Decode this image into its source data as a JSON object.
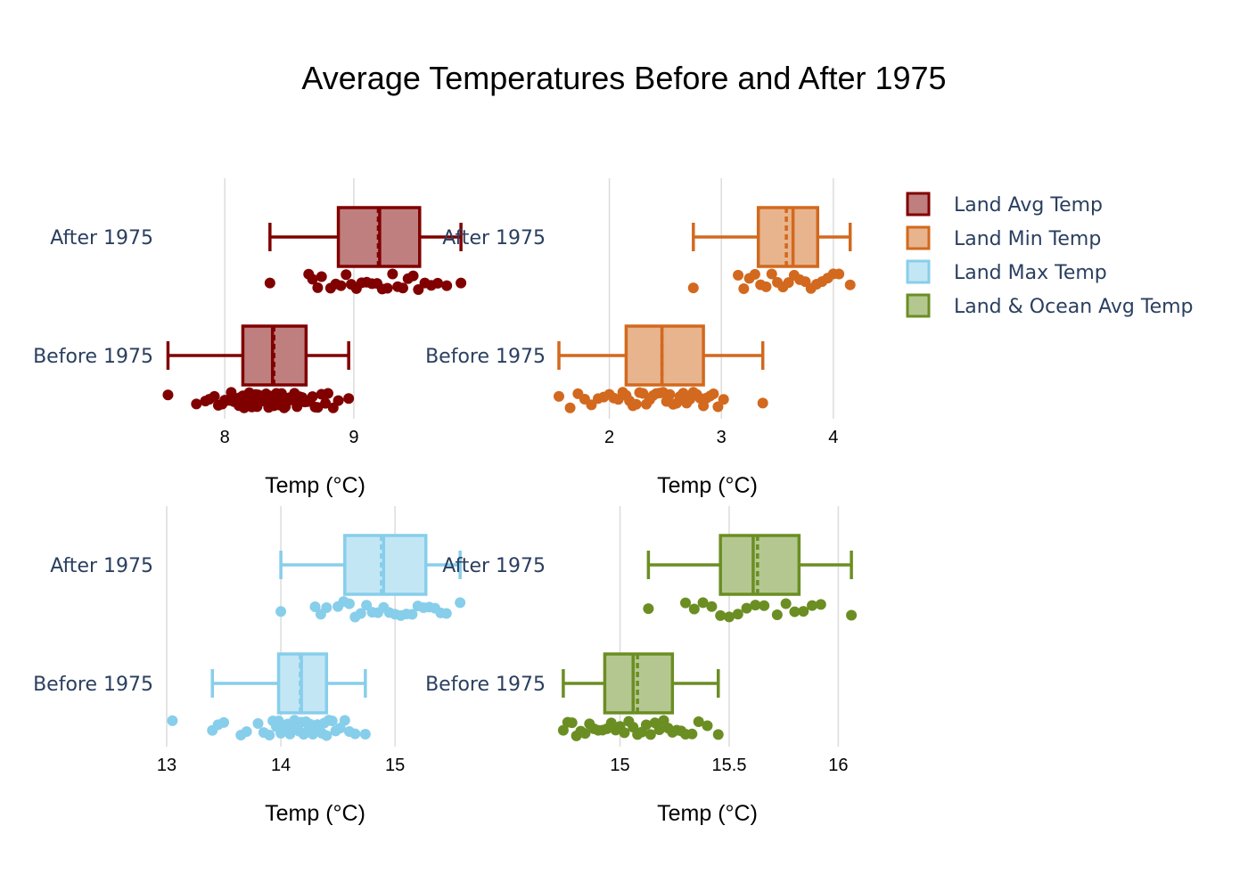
{
  "chart_data": {
    "type": "box",
    "title": "Average Temperatures Before and After 1975",
    "categories": [
      "Before 1975",
      "After 1975"
    ],
    "legend": {
      "placement": "top-right",
      "items": [
        "Land Avg Temp",
        "Land Min Temp",
        "Land Max Temp",
        "Land & Ocean Avg Temp"
      ]
    },
    "grid": true,
    "panels": [
      {
        "series": "Land Avg Temp",
        "color": "#800000",
        "fill": "#bf7f7f",
        "xlabel": "Temp (°C)",
        "xlim": [
          7.55,
          9.85
        ],
        "xticks": [
          8,
          9
        ],
        "boxes": [
          {
            "category": "Before 1975",
            "min": 7.56,
            "q1": 8.14,
            "median": 8.37,
            "mean": 8.38,
            "q3": 8.63,
            "max": 8.96,
            "points": [
              7.56,
              7.78,
              7.85,
              7.88,
              7.92,
              7.95,
              7.98,
              8.0,
              8.02,
              8.04,
              8.05,
              8.07,
              8.08,
              8.1,
              8.11,
              8.12,
              8.13,
              8.14,
              8.15,
              8.16,
              8.17,
              8.18,
              8.19,
              8.2,
              8.21,
              8.22,
              8.23,
              8.24,
              8.25,
              8.26,
              8.27,
              8.28,
              8.29,
              8.3,
              8.31,
              8.32,
              8.33,
              8.34,
              8.35,
              8.36,
              8.37,
              8.38,
              8.39,
              8.4,
              8.41,
              8.42,
              8.43,
              8.44,
              8.45,
              8.46,
              8.47,
              8.48,
              8.5,
              8.52,
              8.54,
              8.56,
              8.58,
              8.6,
              8.62,
              8.64,
              8.66,
              8.68,
              8.7,
              8.72,
              8.75,
              8.78,
              8.8,
              8.84,
              8.88,
              8.96
            ]
          },
          {
            "category": "After 1975",
            "min": 8.35,
            "q1": 8.88,
            "median": 9.2,
            "mean": 9.19,
            "q3": 9.51,
            "max": 9.83,
            "points": [
              8.35,
              8.65,
              8.68,
              8.72,
              8.75,
              8.82,
              8.86,
              8.9,
              8.94,
              8.98,
              9.02,
              9.06,
              9.1,
              9.14,
              9.18,
              9.22,
              9.26,
              9.3,
              9.34,
              9.38,
              9.42,
              9.46,
              9.5,
              9.55,
              9.6,
              9.65,
              9.72,
              9.83
            ]
          }
        ]
      },
      {
        "series": "Land Min Temp",
        "color": "#d2691e",
        "fill": "#e8b48e",
        "xlabel": "Temp (°C)",
        "xlim": [
          1.55,
          4.2
        ],
        "xticks": [
          2,
          3,
          4
        ],
        "boxes": [
          {
            "category": "Before 1975",
            "min": 1.55,
            "q1": 2.15,
            "median": 2.47,
            "mean": 2.47,
            "q3": 2.84,
            "max": 3.37,
            "points": [
              1.55,
              1.65,
              1.72,
              1.78,
              1.84,
              1.9,
              1.95,
              2.0,
              2.04,
              2.08,
              2.12,
              2.15,
              2.18,
              2.21,
              2.24,
              2.27,
              2.3,
              2.33,
              2.36,
              2.39,
              2.42,
              2.45,
              2.48,
              2.51,
              2.54,
              2.57,
              2.6,
              2.63,
              2.66,
              2.69,
              2.72,
              2.75,
              2.78,
              2.81,
              2.84,
              2.87,
              2.9,
              2.93,
              2.97,
              3.02,
              3.37
            ]
          },
          {
            "category": "After 1975",
            "min": 2.75,
            "q1": 3.33,
            "median": 3.64,
            "mean": 3.58,
            "q3": 3.86,
            "max": 4.15,
            "points": [
              2.75,
              3.15,
              3.2,
              3.25,
              3.3,
              3.35,
              3.4,
              3.45,
              3.5,
              3.55,
              3.6,
              3.65,
              3.7,
              3.75,
              3.8,
              3.85,
              3.9,
              3.95,
              4.0,
              4.05,
              4.15
            ]
          }
        ]
      },
      {
        "series": "Land Max Temp",
        "color": "#87ceeb",
        "fill": "#c3e6f5",
        "xlabel": "Temp (°C)",
        "xlim": [
          13.0,
          15.6
        ],
        "xticks": [
          13,
          14,
          15
        ],
        "boxes": [
          {
            "category": "Before 1975",
            "min": 13.4,
            "q1": 13.98,
            "median": 14.18,
            "mean": 14.17,
            "q3": 14.4,
            "max": 14.74,
            "points": [
              13.05,
              13.4,
              13.45,
              13.5,
              13.65,
              13.7,
              13.8,
              13.85,
              13.9,
              13.93,
              13.96,
              13.98,
              14.0,
              14.02,
              14.04,
              14.06,
              14.08,
              14.1,
              14.12,
              14.14,
              14.16,
              14.18,
              14.2,
              14.22,
              14.24,
              14.26,
              14.28,
              14.3,
              14.32,
              14.34,
              14.36,
              14.38,
              14.4,
              14.42,
              14.45,
              14.48,
              14.52,
              14.56,
              14.6,
              14.65,
              14.74
            ]
          },
          {
            "category": "After 1975",
            "min": 14.0,
            "q1": 14.56,
            "median": 14.9,
            "mean": 14.88,
            "q3": 15.27,
            "max": 15.57,
            "points": [
              14.0,
              14.3,
              14.35,
              14.4,
              14.5,
              14.55,
              14.6,
              14.65,
              14.7,
              14.75,
              14.8,
              14.85,
              14.9,
              14.95,
              15.0,
              15.05,
              15.1,
              15.15,
              15.2,
              15.25,
              15.3,
              15.35,
              15.4,
              15.45,
              15.57
            ]
          }
        ]
      },
      {
        "series": "Land & Ocean Avg Temp",
        "color": "#6b8e23",
        "fill": "#b5c791",
        "xlabel": "Temp (°C)",
        "xlim": [
          14.72,
          16.08
        ],
        "xticks": [
          15,
          15.5,
          16
        ],
        "xticklabels": [
          "15",
          "15.5",
          "16"
        ],
        "boxes": [
          {
            "category": "Before 1975",
            "min": 14.74,
            "q1": 14.93,
            "median": 15.06,
            "mean": 15.08,
            "q3": 15.24,
            "max": 15.45,
            "points": [
              14.74,
              14.76,
              14.78,
              14.8,
              14.82,
              14.84,
              14.86,
              14.88,
              14.9,
              14.92,
              14.94,
              14.96,
              14.98,
              15.0,
              15.02,
              15.04,
              15.06,
              15.08,
              15.1,
              15.12,
              15.14,
              15.16,
              15.18,
              15.2,
              15.22,
              15.24,
              15.26,
              15.28,
              15.3,
              15.33,
              15.36,
              15.4,
              15.45
            ]
          },
          {
            "category": "After 1975",
            "min": 15.13,
            "q1": 15.46,
            "median": 15.61,
            "mean": 15.63,
            "q3": 15.82,
            "max": 16.06,
            "points": [
              15.13,
              15.3,
              15.34,
              15.38,
              15.42,
              15.46,
              15.5,
              15.54,
              15.58,
              15.62,
              15.66,
              15.72,
              15.76,
              15.8,
              15.84,
              15.88,
              15.92,
              16.06
            ]
          }
        ]
      }
    ]
  }
}
